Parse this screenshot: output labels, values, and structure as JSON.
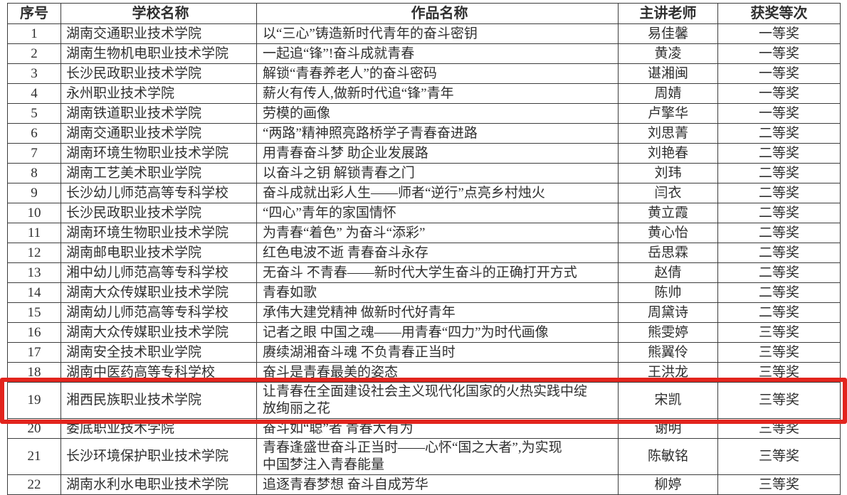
{
  "table": {
    "headers": [
      "序号",
      "学校名称",
      "作品名称",
      "主讲老师",
      "获奖等次"
    ],
    "rows": [
      {
        "no": "1",
        "school": "湖南交通职业技术学院",
        "work": "以“三心”铸造新时代青年的奋斗密钥",
        "teacher": "易佳馨",
        "award": "一等奖"
      },
      {
        "no": "2",
        "school": "湖南生物机电职业技术学院",
        "work": "一起追“锋”!奋斗成就青春",
        "teacher": "黄凌",
        "award": "一等奖"
      },
      {
        "no": "3",
        "school": "长沙民政职业技术学院",
        "work": "解锁“青春养老人”的奋斗密码",
        "teacher": "谌湘闽",
        "award": "一等奖"
      },
      {
        "no": "4",
        "school": "永州职业技术学院",
        "work": "薪火有传人,做新时代追“锋”青年",
        "teacher": "周婧",
        "award": "一等奖"
      },
      {
        "no": "5",
        "school": "湖南铁道职业技术学院",
        "work": "劳模的画像",
        "teacher": "卢擎华",
        "award": "一等奖"
      },
      {
        "no": "6",
        "school": "湖南交通职业技术学院",
        "work": "“两路”精神照亮路桥学子青春奋进路",
        "teacher": "刘思菁",
        "award": "二等奖"
      },
      {
        "no": "7",
        "school": "湖南环境生物职业技术学院",
        "work": "用青春奋斗梦 助企业发展路",
        "teacher": "刘艳春",
        "award": "二等奖"
      },
      {
        "no": "8",
        "school": "湖南工艺美术职业学院",
        "work": "以奋斗之钥 解锁青春之门",
        "teacher": "刘玮",
        "award": "二等奖"
      },
      {
        "no": "9",
        "school": "长沙幼儿师范高等专科学校",
        "work": "奋斗成就出彩人生——师者“逆行”点亮乡村烛火",
        "teacher": "闫衣",
        "award": "二等奖"
      },
      {
        "no": "10",
        "school": "长沙民政职业技术学院",
        "work": "“四心”青年的家国情怀",
        "teacher": "黄立霞",
        "award": "二等奖"
      },
      {
        "no": "11",
        "school": "湖南环境生物职业技术学院",
        "work": "为青春“着色”  为奋斗“添彩”",
        "teacher": "黄心怡",
        "award": "二等奖"
      },
      {
        "no": "12",
        "school": "湖南邮电职业技术学院",
        "work": "红色电波不逝 青春奋斗永存",
        "teacher": "岳思霖",
        "award": "二等奖"
      },
      {
        "no": "13",
        "school": "湘中幼儿师范高等专科学校",
        "work": "无奋斗 不青春——新时代大学生奋斗的正确打开方式",
        "teacher": "赵倩",
        "award": "二等奖"
      },
      {
        "no": "14",
        "school": "湖南大众传媒职业技术学院",
        "work": "青春如歌",
        "teacher": "陈帅",
        "award": "二等奖"
      },
      {
        "no": "15",
        "school": "湖南幼儿师范高等专科学校",
        "work": "承伟大建党精神 做新时代好青年",
        "teacher": "周黛诗",
        "award": "二等奖"
      },
      {
        "no": "16",
        "school": "湖南大众传媒职业技术学院",
        "work": "记者之眼 中国之魂——用青春“四力”为时代画像",
        "teacher": "熊雯婷",
        "award": "三等奖"
      },
      {
        "no": "17",
        "school": "湖南安全技术职业学院",
        "work": "赓续湖湘奋斗魂 不负青春正当时",
        "teacher": "熊翼伶",
        "award": "三等奖"
      },
      {
        "no": "18",
        "school": "湖南中医药高等专科学校",
        "work": "奋斗是青春最美的姿态",
        "teacher": "王洪龙",
        "award": "三等奖"
      },
      {
        "no": "19",
        "school": "湘西民族职业技术学院",
        "work": "让青春在全面建设社会主义现代化国家的火热实践中绽\n放绚丽之花",
        "teacher": "宋凯",
        "award": "三等奖"
      },
      {
        "no": "20",
        "school": "娄底职业技术学院",
        "work": "奋斗如“聪”者 青春大有为",
        "teacher": "谢明",
        "award": "三等奖"
      },
      {
        "no": "21",
        "school": "长沙环境保护职业技术学院",
        "work": "青春逢盛世奋斗正当时——心怀“国之大者”,为实现\n中国梦注入青春能量",
        "teacher": "陈敏铭",
        "award": "三等奖"
      },
      {
        "no": "22",
        "school": "湖南水利水电职业技术学院",
        "work": "追逐青春梦想 奋斗自成芳华",
        "teacher": "柳婷",
        "award": "三等奖"
      }
    ]
  },
  "highlight": {
    "row_no": "19",
    "color": "#e2241d"
  },
  "colors": {
    "table_border": "#3d3d3d",
    "text": "#2f2f2f",
    "background": "#ffffff"
  }
}
